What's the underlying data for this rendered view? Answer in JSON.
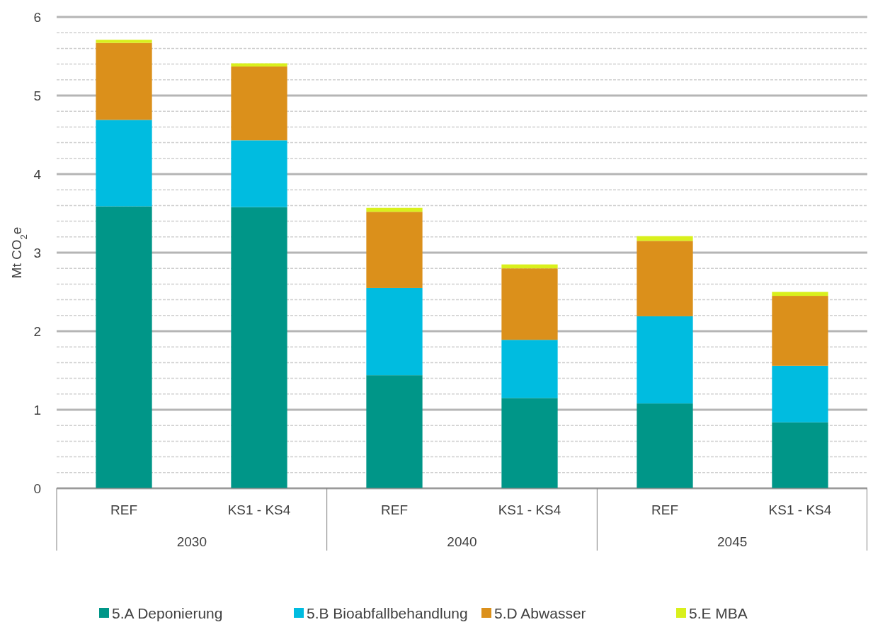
{
  "chart_data": {
    "type": "bar",
    "stacked": true,
    "ylabel": "Mt CO$_{2}$e",
    "categories": [
      "REF",
      "KS1 - KS4",
      "REF",
      "KS1 - KS4",
      "REF",
      "KS1 - KS4"
    ],
    "annotations": [
      "2030",
      "2040",
      "2045"
    ],
    "series": [
      {
        "name": "5.A Deponierung",
        "color": "#009688",
        "values": [
          3.59,
          3.58,
          1.44,
          1.15,
          1.08,
          0.84
        ]
      },
      {
        "name": "5.B Bioabfallbehandlung",
        "color": "#00bce0",
        "values": [
          1.1,
          0.85,
          1.11,
          0.74,
          1.11,
          0.72
        ]
      },
      {
        "name": "5.D Abwasser",
        "color": "#db901b",
        "values": [
          0.98,
          0.94,
          0.97,
          0.91,
          0.96,
          0.89
        ]
      },
      {
        "name": "5.E MBA",
        "color": "#d9f01c",
        "values": [
          0.04,
          0.04,
          0.05,
          0.05,
          0.06,
          0.05
        ]
      }
    ],
    "ylim": [
      0,
      6
    ],
    "yticks": [
      0,
      {
        "value": 0.2,
        "label": null
      },
      {
        "value": 0.4,
        "label": null
      },
      {
        "value": 0.6,
        "label": null
      },
      {
        "value": 0.8,
        "label": null
      },
      1,
      {
        "value": 1.2,
        "label": null
      },
      {
        "value": 1.4,
        "label": null
      },
      {
        "value": 1.6,
        "label": null
      },
      {
        "value": 1.8,
        "label": null
      },
      2,
      {
        "value": 2.2,
        "label": null
      },
      {
        "value": 2.4,
        "label": null
      },
      {
        "value": 2.6,
        "label": null
      },
      {
        "value": 2.8,
        "label": null
      },
      3,
      {
        "value": 3.2,
        "label": null
      },
      {
        "value": 3.4,
        "label": null
      },
      {
        "value": 3.6,
        "label": null
      },
      {
        "value": 3.8,
        "label": null
      },
      4,
      {
        "value": 4.2,
        "label": null
      },
      {
        "value": 4.4,
        "label": null
      },
      {
        "value": 4.6,
        "label": null
      },
      {
        "value": 4.8,
        "label": null
      },
      5,
      {
        "value": 5.2,
        "label": null
      },
      {
        "value": 5.4,
        "label": null
      },
      {
        "value": 5.6,
        "label": null
      },
      {
        "value": 5.8,
        "label": null
      },
      6
    ],
    "grid": true,
    "legend": "bottom"
  }
}
